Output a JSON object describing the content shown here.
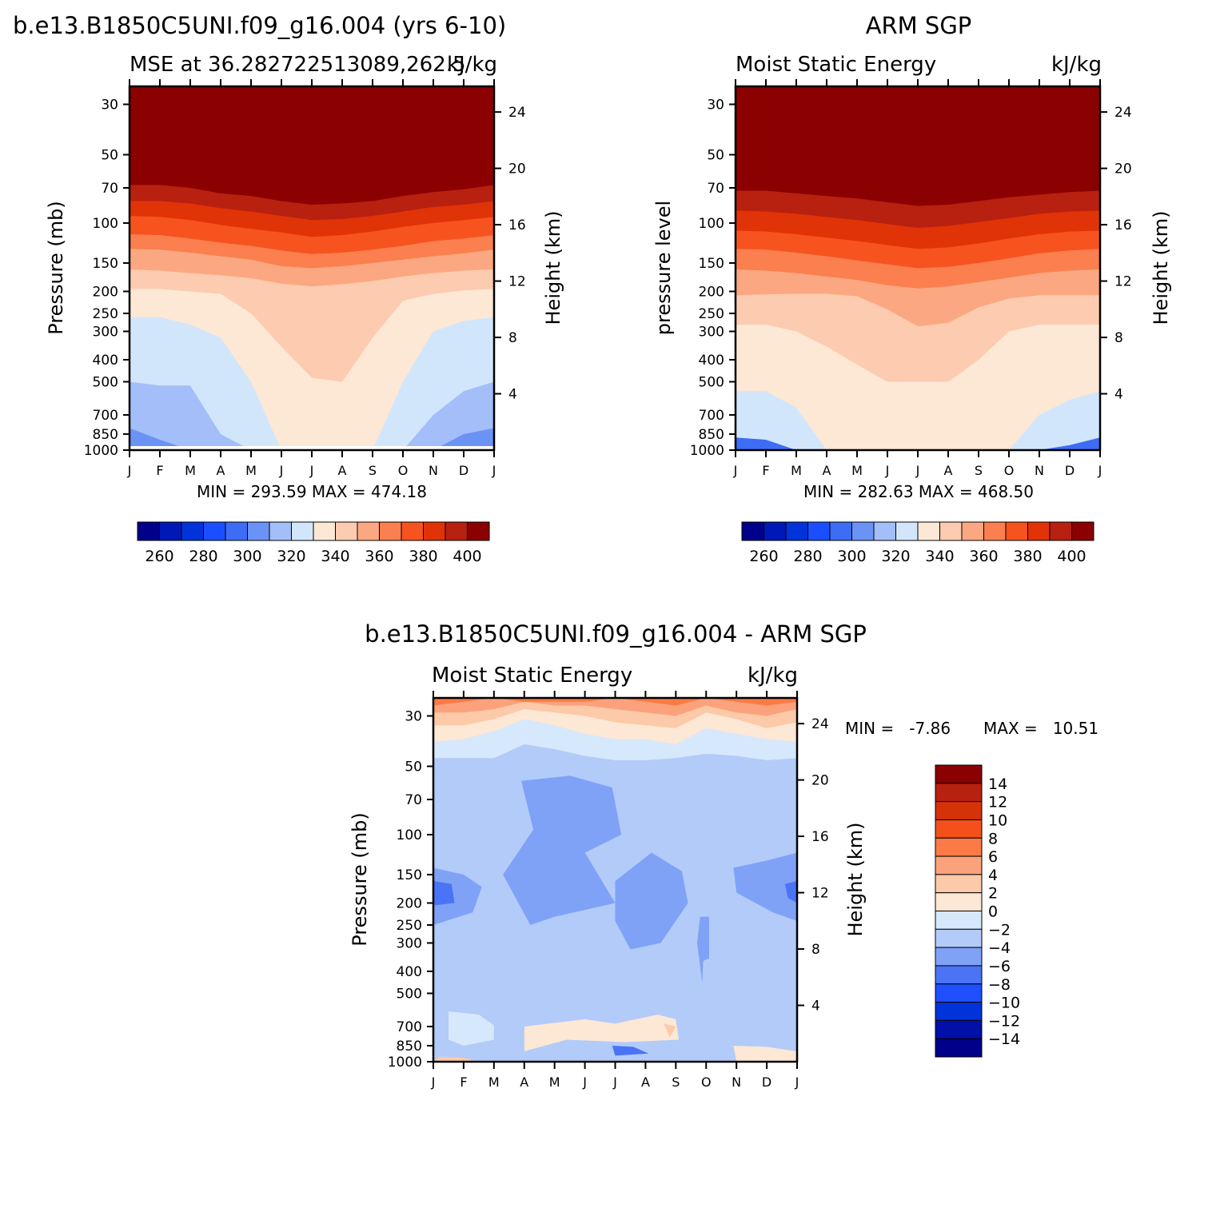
{
  "panels": {
    "model": {
      "main_title": "b.e13.B1850C5UNI.f09_g16.004 (yrs 6-10)",
      "left_title": "MSE at 36.282722513089,262.5",
      "right_title": "kJ/kg",
      "ylabel": "Pressure (mb)",
      "ylabel_right": "Height (km)",
      "minmax": "MIN = 293.59 MAX = 474.18"
    },
    "obs": {
      "main_title": "ARM SGP",
      "left_title": "Moist Static Energy",
      "right_title": "kJ/kg",
      "ylabel": "pressure level",
      "ylabel_right": "Height (km)",
      "minmax": "MIN = 282.63 MAX = 468.50"
    },
    "diff": {
      "main_title": "b.e13.B1850C5UNI.f09_g16.004 - ARM SGP",
      "left_title": "Moist Static Energy",
      "right_title": "kJ/kg",
      "ylabel": "Pressure (mb)",
      "ylabel_right": "Height (km)",
      "minmax_min": "MIN =   -7.86",
      "minmax_max": "MAX =   10.51"
    }
  },
  "chart_data": [
    {
      "type": "heatmap",
      "id": "model",
      "title": "MSE at 36.282722513089,262.5",
      "units": "kJ/kg",
      "x_ticklabels": [
        "J",
        "F",
        "M",
        "A",
        "M",
        "J",
        "J",
        "A",
        "S",
        "O",
        "N",
        "D",
        "J"
      ],
      "pressure_levels_mb": [
        30,
        50,
        70,
        100,
        150,
        200,
        250,
        300,
        400,
        500,
        700,
        850,
        1000
      ],
      "height_ticks_km": [
        4,
        8,
        12,
        16,
        20,
        24
      ],
      "ylim_mb": [
        1000,
        25
      ],
      "colorbar_ticks": [
        260,
        280,
        300,
        320,
        340,
        360,
        380,
        400
      ],
      "contour_levels": [
        250,
        260,
        270,
        280,
        290,
        300,
        310,
        320,
        330,
        340,
        350,
        360,
        370,
        380,
        390,
        400
      ],
      "min": 293.59,
      "max": 474.18,
      "boundaries_mb": {
        "400": [
          59,
          59,
          61,
          64,
          66,
          70,
          72,
          72,
          70,
          66,
          63,
          62,
          59
        ],
        "390": [
          68,
          68,
          70,
          74,
          76,
          80,
          83,
          82,
          80,
          76,
          73,
          71,
          68
        ],
        "380": [
          80,
          80,
          82,
          86,
          89,
          93,
          97,
          96,
          93,
          89,
          85,
          83,
          80
        ],
        "370": [
          93,
          94,
          97,
          102,
          106,
          110,
          115,
          113,
          109,
          104,
          100,
          97,
          94
        ],
        "360": [
          112,
          113,
          117,
          122,
          126,
          132,
          137,
          135,
          131,
          126,
          120,
          117,
          113
        ],
        "350": [
          130,
          131,
          135,
          140,
          145,
          155,
          158,
          155,
          150,
          145,
          140,
          136,
          131
        ],
        "340": [
          160,
          162,
          166,
          170,
          175,
          185,
          190,
          186,
          180,
          172,
          166,
          162,
          160
        ],
        "330": [
          195,
          195,
          200,
          205,
          250,
          350,
          480,
          500,
          320,
          220,
          205,
          198,
          195
        ],
        "320": [
          260,
          260,
          280,
          320,
          500,
          1000,
          1000,
          1000,
          1000,
          500,
          300,
          270,
          260
        ],
        "310": [
          500,
          520,
          520,
          850,
          1000,
          1000,
          1000,
          1000,
          1000,
          1000,
          700,
          550,
          500
        ],
        "300": [
          800,
          900,
          1000,
          1000,
          1000,
          1000,
          1000,
          1000,
          1000,
          1000,
          1000,
          850,
          800
        ]
      }
    },
    {
      "type": "heatmap",
      "id": "obs",
      "title": "Moist Static Energy",
      "units": "kJ/kg",
      "x_ticklabels": [
        "J",
        "F",
        "M",
        "A",
        "M",
        "J",
        "J",
        "A",
        "S",
        "O",
        "N",
        "D",
        "J"
      ],
      "pressure_levels_mb": [
        30,
        50,
        70,
        100,
        150,
        200,
        250,
        300,
        400,
        500,
        700,
        850,
        1000
      ],
      "height_ticks_km": [
        4,
        8,
        12,
        16,
        20,
        24
      ],
      "ylim_mb": [
        1000,
        25
      ],
      "colorbar_ticks": [
        260,
        280,
        300,
        320,
        340,
        360,
        380,
        400
      ],
      "contour_levels": [
        250,
        260,
        270,
        280,
        290,
        300,
        310,
        320,
        330,
        340,
        350,
        360,
        370,
        380,
        390,
        400
      ],
      "min": 282.63,
      "max": 468.5,
      "boundaries_mb": {
        "400": [
          61,
          61,
          62,
          64,
          66,
          68,
          70,
          70,
          68,
          66,
          64,
          62,
          61
        ],
        "390": [
          72,
          72,
          74,
          76,
          78,
          81,
          84,
          83,
          80,
          77,
          75,
          73,
          72
        ],
        "380": [
          88,
          89,
          91,
          94,
          97,
          101,
          105,
          103,
          99,
          95,
          91,
          89,
          88
        ],
        "370": [
          108,
          109,
          112,
          116,
          120,
          125,
          130,
          128,
          123,
          117,
          112,
          109,
          108
        ],
        "360": [
          130,
          131,
          135,
          140,
          146,
          152,
          158,
          156,
          150,
          143,
          136,
          132,
          130
        ],
        "350": [
          160,
          162,
          166,
          172,
          178,
          188,
          194,
          190,
          182,
          174,
          166,
          162,
          160
        ],
        "340": [
          208,
          206,
          205,
          205,
          210,
          240,
          285,
          275,
          235,
          215,
          208,
          208,
          208
        ],
        "330": [
          280,
          280,
          300,
          350,
          420,
          500,
          500,
          500,
          400,
          300,
          280,
          280,
          280
        ],
        "320": [
          550,
          550,
          650,
          1000,
          1000,
          1000,
          1000,
          1000,
          1000,
          1000,
          700,
          600,
          550
        ],
        "310": [
          880,
          900,
          1000,
          1000,
          1000,
          1000,
          1000,
          1000,
          1000,
          1000,
          1000,
          950,
          880
        ]
      }
    },
    {
      "type": "heatmap",
      "id": "difference",
      "title": "Moist Static Energy",
      "units": "kJ/kg",
      "x_ticklabels": [
        "J",
        "F",
        "M",
        "A",
        "M",
        "J",
        "J",
        "A",
        "S",
        "O",
        "N",
        "D",
        "J"
      ],
      "pressure_levels_mb": [
        30,
        50,
        70,
        100,
        150,
        200,
        250,
        300,
        400,
        500,
        700,
        850,
        1000
      ],
      "height_ticks_km": [
        4,
        8,
        12,
        16,
        20,
        24
      ],
      "ylim_mb": [
        1000,
        25
      ],
      "colorbar_ticks": [
        14,
        12,
        10,
        8,
        6,
        4,
        2,
        0,
        -2,
        -4,
        -6,
        -8,
        -10,
        -12,
        -14
      ],
      "contour_levels": [
        -14,
        -12,
        -10,
        -8,
        -6,
        -4,
        -2,
        0,
        2,
        4,
        6,
        8,
        10,
        12,
        14
      ],
      "min": -7.86,
      "max": 10.51,
      "boundaries_mb": {
        "6": [
          27,
          26,
          25,
          26,
          26,
          26,
          25,
          26,
          27,
          25,
          26,
          27,
          26
        ],
        "4": [
          29,
          29,
          28,
          26,
          27,
          27,
          28,
          29,
          30,
          27,
          29,
          30,
          28
        ],
        "2": [
          33,
          33,
          31,
          28,
          29,
          30,
          32,
          33,
          34,
          29,
          31,
          34,
          32
        ],
        "0": [
          39,
          38,
          35,
          31,
          33,
          36,
          38,
          38,
          40,
          34,
          36,
          38,
          39
        ],
        "-2": [
          46,
          46,
          46,
          40,
          42,
          45,
          47,
          47,
          46,
          44,
          45,
          47,
          46
        ]
      },
      "regions": [
        {
          "level_range": [
            -6,
            -4
          ],
          "description": "deeper negative areas near 100-300 mb"
        },
        {
          "level_range": [
            -8,
            -6
          ],
          "description": "small pockets near 150-200 mb"
        },
        {
          "level_range": [
            0,
            2
          ],
          "description": "positive patches near surface Jul-Sep"
        }
      ]
    }
  ]
}
